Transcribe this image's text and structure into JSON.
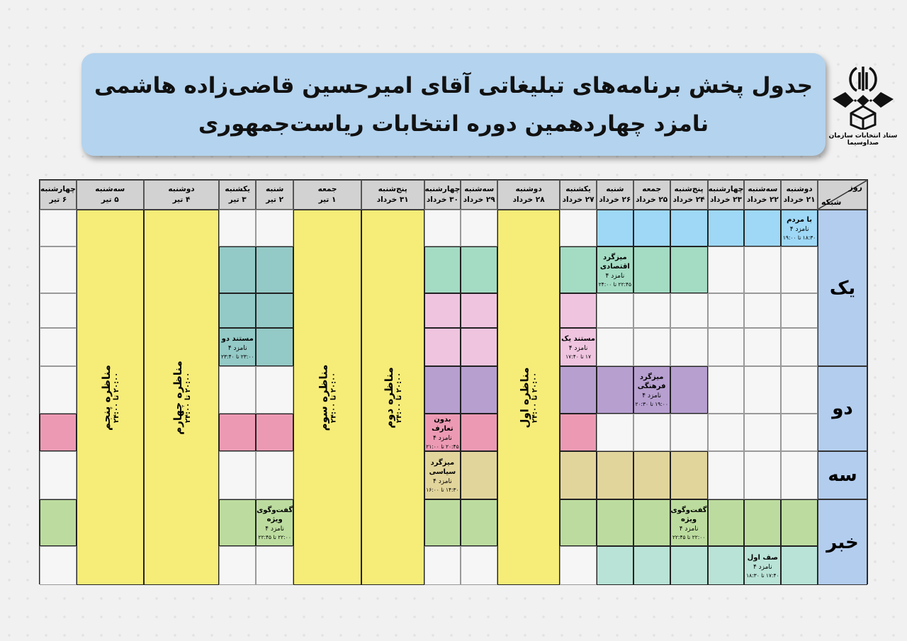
{
  "title": {
    "line1": "جدول پخش برنامه‌های تبلیغاتی آقای امیرحسین قاضی‌زاده هاشمی",
    "line2": "نامزد چهاردهمین دوره انتخابات ریاست‌جمهوری"
  },
  "logo": {
    "text": "ستاد انتخابات سازمان صداوسیما"
  },
  "corner": {
    "day": "روز",
    "channel": "شبکه"
  },
  "days": [
    {
      "d": "دوشنبه",
      "date": "۲۱ خرداد"
    },
    {
      "d": "سه‌شنبه",
      "date": "۲۲ خرداد"
    },
    {
      "d": "چهارشنبه",
      "date": "۲۳ خرداد"
    },
    {
      "d": "پنج‌شنبه",
      "date": "۲۴ خرداد"
    },
    {
      "d": "جمعه",
      "date": "۲۵ خرداد"
    },
    {
      "d": "شنبه",
      "date": "۲۶ خرداد"
    },
    {
      "d": "یکشنبه",
      "date": "۲۷ خرداد"
    },
    {
      "d": "دوشنبه",
      "date": "۲۸ خرداد"
    },
    {
      "d": "سه‌شنبه",
      "date": "۲۹ خرداد"
    },
    {
      "d": "چهارشنبه",
      "date": "۳۰ خرداد"
    },
    {
      "d": "پنج‌شنبه",
      "date": "۳۱ خرداد"
    },
    {
      "d": "جمعه",
      "date": "۱ تیر"
    },
    {
      "d": "شنبه",
      "date": "۲ تیر"
    },
    {
      "d": "یکشنبه",
      "date": "۳ تیر"
    },
    {
      "d": "دوشنبه",
      "date": "۴ تیر"
    },
    {
      "d": "سه‌شنبه",
      "date": "۵ تیر"
    },
    {
      "d": "چهارشنبه",
      "date": "۶ تیر"
    }
  ],
  "channels": [
    {
      "name": "یک",
      "rows": 4
    },
    {
      "name": "دو",
      "rows": 2
    },
    {
      "name": "سه",
      "rows": 1
    },
    {
      "name": "خبر",
      "rows": 2
    }
  ],
  "colors": {
    "B": "#9ed8f6",
    "M": "#a3dbc3",
    "T": "#93c9c6",
    "P": "#efc4df",
    "U": "#b79fd0",
    "R": "#ec9ab4",
    "N": "#e2d59c",
    "G": "#bcdc9f",
    "A": "#b9e3d6",
    "W": "#f6f6f6",
    "Y": "#f6ec78",
    "header": "#d2d2d2",
    "channel": "#b3cdee"
  },
  "grid": [
    "BBBBBBWYWWYYWWYYW",
    "WWWMMMMYMMYYTTYYW",
    "WWWWWWPYPPYYTTYYW",
    "WWWWWWPYPPYYTTYYW",
    "WWWUUUUYUUYYWWYYW",
    "WWWWWWRYRRYYRRYYR",
    "WWWNNNNYNNYYWWYYW",
    "GGGGGGGYGGYYGGYYG",
    "AAAAAAWYWWYYWWYYW"
  ],
  "debates": [
    {
      "day": 8,
      "name": "مناظره اول",
      "time": "۲۰:۰۰ تا ۲۴:۰۰"
    },
    {
      "day": 11,
      "name": "مناظره دوم",
      "time": "۲۰:۰۰ تا ۲۴:۰۰"
    },
    {
      "day": 12,
      "name": "مناظره سوم",
      "time": "۲۰:۰۰ تا ۲۴:۰۰"
    },
    {
      "day": 15,
      "name": "مناظره چهارم",
      "time": "۲۰:۰۰ تا ۲۴:۰۰"
    },
    {
      "day": 16,
      "name": "مناظره پنجم",
      "time": "۲۰:۰۰ تا ۲۴:۰۰"
    }
  ],
  "programs": [
    {
      "row": 1,
      "day": 1,
      "title": "با مردم",
      "cand": "نامزد ۴",
      "time": "۱۸:۳۰ تا ۱۹:۰۰"
    },
    {
      "row": 2,
      "day": 6,
      "title": "میزگرد اقتصادی",
      "cand": "نامزد ۴",
      "time": "۲۲:۴۵ تا ۲۴:۰۰"
    },
    {
      "row": 4,
      "day": 7,
      "title": "مستند یک",
      "cand": "نامزد ۴",
      "time": "۱۷ تا ۱۷:۴۰"
    },
    {
      "row": 4,
      "day": 14,
      "title": "مستند دو",
      "cand": "نامزد ۴",
      "time": "۲۳:۰۰ تا ۲۳:۴۰"
    },
    {
      "row": 5,
      "day": 5,
      "title": "میزگرد فرهنگی",
      "cand": "نامزد ۴",
      "time": "۱۹:۰۰ تا ۲۰:۳۰"
    },
    {
      "row": 6,
      "day": 10,
      "title": "بدون تعارف",
      "cand": "نامزد ۴",
      "time": "۲۰:۴۵ تا ۲۱:۰۰"
    },
    {
      "row": 7,
      "day": 10,
      "title": "میزگرد سیاسی",
      "cand": "نامزد ۴",
      "time": "۱۴:۳۰ تا ۱۶:۰۰"
    },
    {
      "row": 8,
      "day": 4,
      "title": "گفت‌وگوی ویژه",
      "cand": "نامزد ۴",
      "time": "۲۲:۰۰ تا ۲۲:۴۵"
    },
    {
      "row": 8,
      "day": 13,
      "title": "گفت‌وگوی ویژه",
      "cand": "نامزد ۴",
      "time": "۲۲:۰۰ تا ۲۲:۴۵"
    },
    {
      "row": 9,
      "day": 2,
      "title": "صف اول",
      "cand": "نامزد ۴",
      "time": "۱۷:۴۰ تا ۱۸:۳۰"
    }
  ]
}
